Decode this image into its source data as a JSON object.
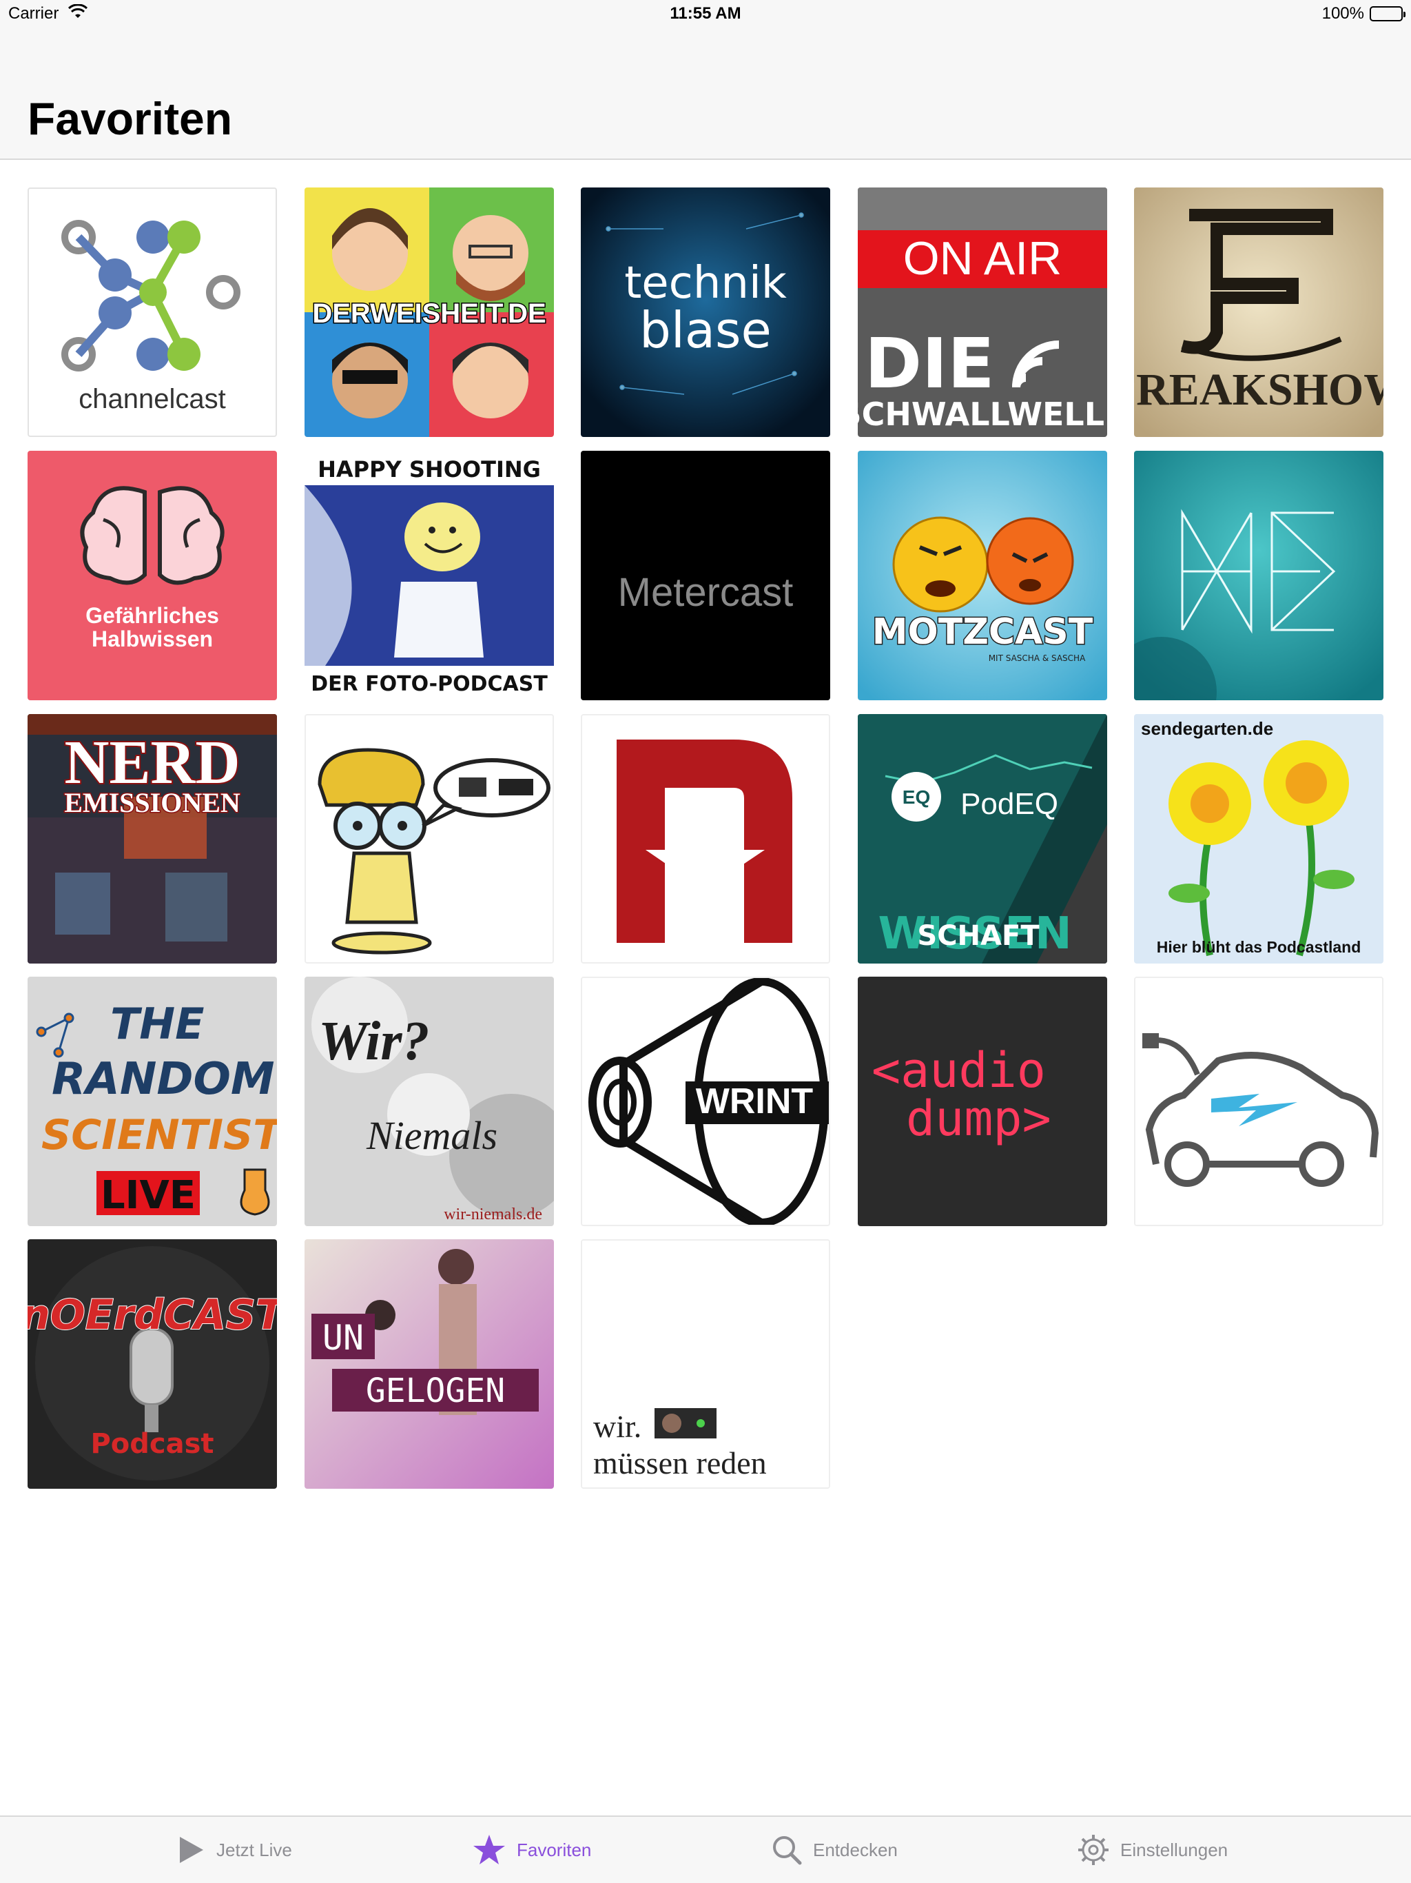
{
  "status_bar": {
    "carrier": "Carrier",
    "time": "11:55 AM",
    "battery": "100%"
  },
  "header": {
    "title": "Favoriten"
  },
  "tiles": [
    {
      "name": "channelcast",
      "text": [
        "channel",
        "cast"
      ]
    },
    {
      "name": "derweisheit",
      "text": [
        "DERWEISHEIT.DE"
      ]
    },
    {
      "name": "technikblase",
      "text": [
        "technik",
        "blase"
      ]
    },
    {
      "name": "die-schwallwelle",
      "text": [
        "ON AIR",
        "DIE",
        "SCHWALLWELLE"
      ]
    },
    {
      "name": "freakshow",
      "text": [
        "FREAKSHOW"
      ]
    },
    {
      "name": "gefaehrliches-halbwissen",
      "text": [
        "Gefährliches",
        "Halbwissen"
      ]
    },
    {
      "name": "happy-shooting",
      "text": [
        "HAPPY SHOOTING",
        "DER FOTO-PODCAST"
      ]
    },
    {
      "name": "metercast",
      "text": [
        "Metercast"
      ]
    },
    {
      "name": "motzcast",
      "text": [
        "MOTZCAST",
        "MIT SASCHA & SASCHA"
      ]
    },
    {
      "name": "ne-podcast",
      "text": [
        "NE"
      ]
    },
    {
      "name": "nerd-emissionen",
      "text": [
        "NERD",
        "EMISSIONEN"
      ]
    },
    {
      "name": "nerd-cartoon",
      "text": []
    },
    {
      "name": "n-star",
      "text": []
    },
    {
      "name": "podeq",
      "text": [
        "EQ",
        "PodEQ",
        "WISSEN",
        "SCHAFT"
      ]
    },
    {
      "name": "sendegarten",
      "text": [
        "sendegarten.de",
        "Hier blüht das Podcastland"
      ]
    },
    {
      "name": "the-random-scientist",
      "text": [
        "THE",
        "RANDOM",
        "SCIENTIST",
        "LIVE"
      ]
    },
    {
      "name": "wir-niemals",
      "text": [
        "Wir?",
        "Niemals",
        "wir-niemals.de"
      ]
    },
    {
      "name": "wrint",
      "text": [
        "WRINT"
      ]
    },
    {
      "name": "audiodump",
      "text": [
        "<audio",
        "dump>"
      ]
    },
    {
      "name": "electric-car",
      "text": []
    },
    {
      "name": "noerdcast",
      "text": [
        "nOErdCAST",
        "Podcast"
      ]
    },
    {
      "name": "ungelogen",
      "text": [
        "UN",
        "GELOGEN"
      ]
    },
    {
      "name": "wir-muessen-reden",
      "text": [
        "wir.",
        "müssen reden"
      ]
    }
  ],
  "tabbar": {
    "items": [
      {
        "label": "Jetzt Live",
        "icon": "play-icon"
      },
      {
        "label": "Favoriten",
        "icon": "star-icon"
      },
      {
        "label": "Entdecken",
        "icon": "search-icon"
      },
      {
        "label": "Einstellungen",
        "icon": "gear-icon"
      }
    ],
    "active": "Favoriten",
    "active_color": "#8a4fdc",
    "inactive_color": "#8e8e93"
  }
}
